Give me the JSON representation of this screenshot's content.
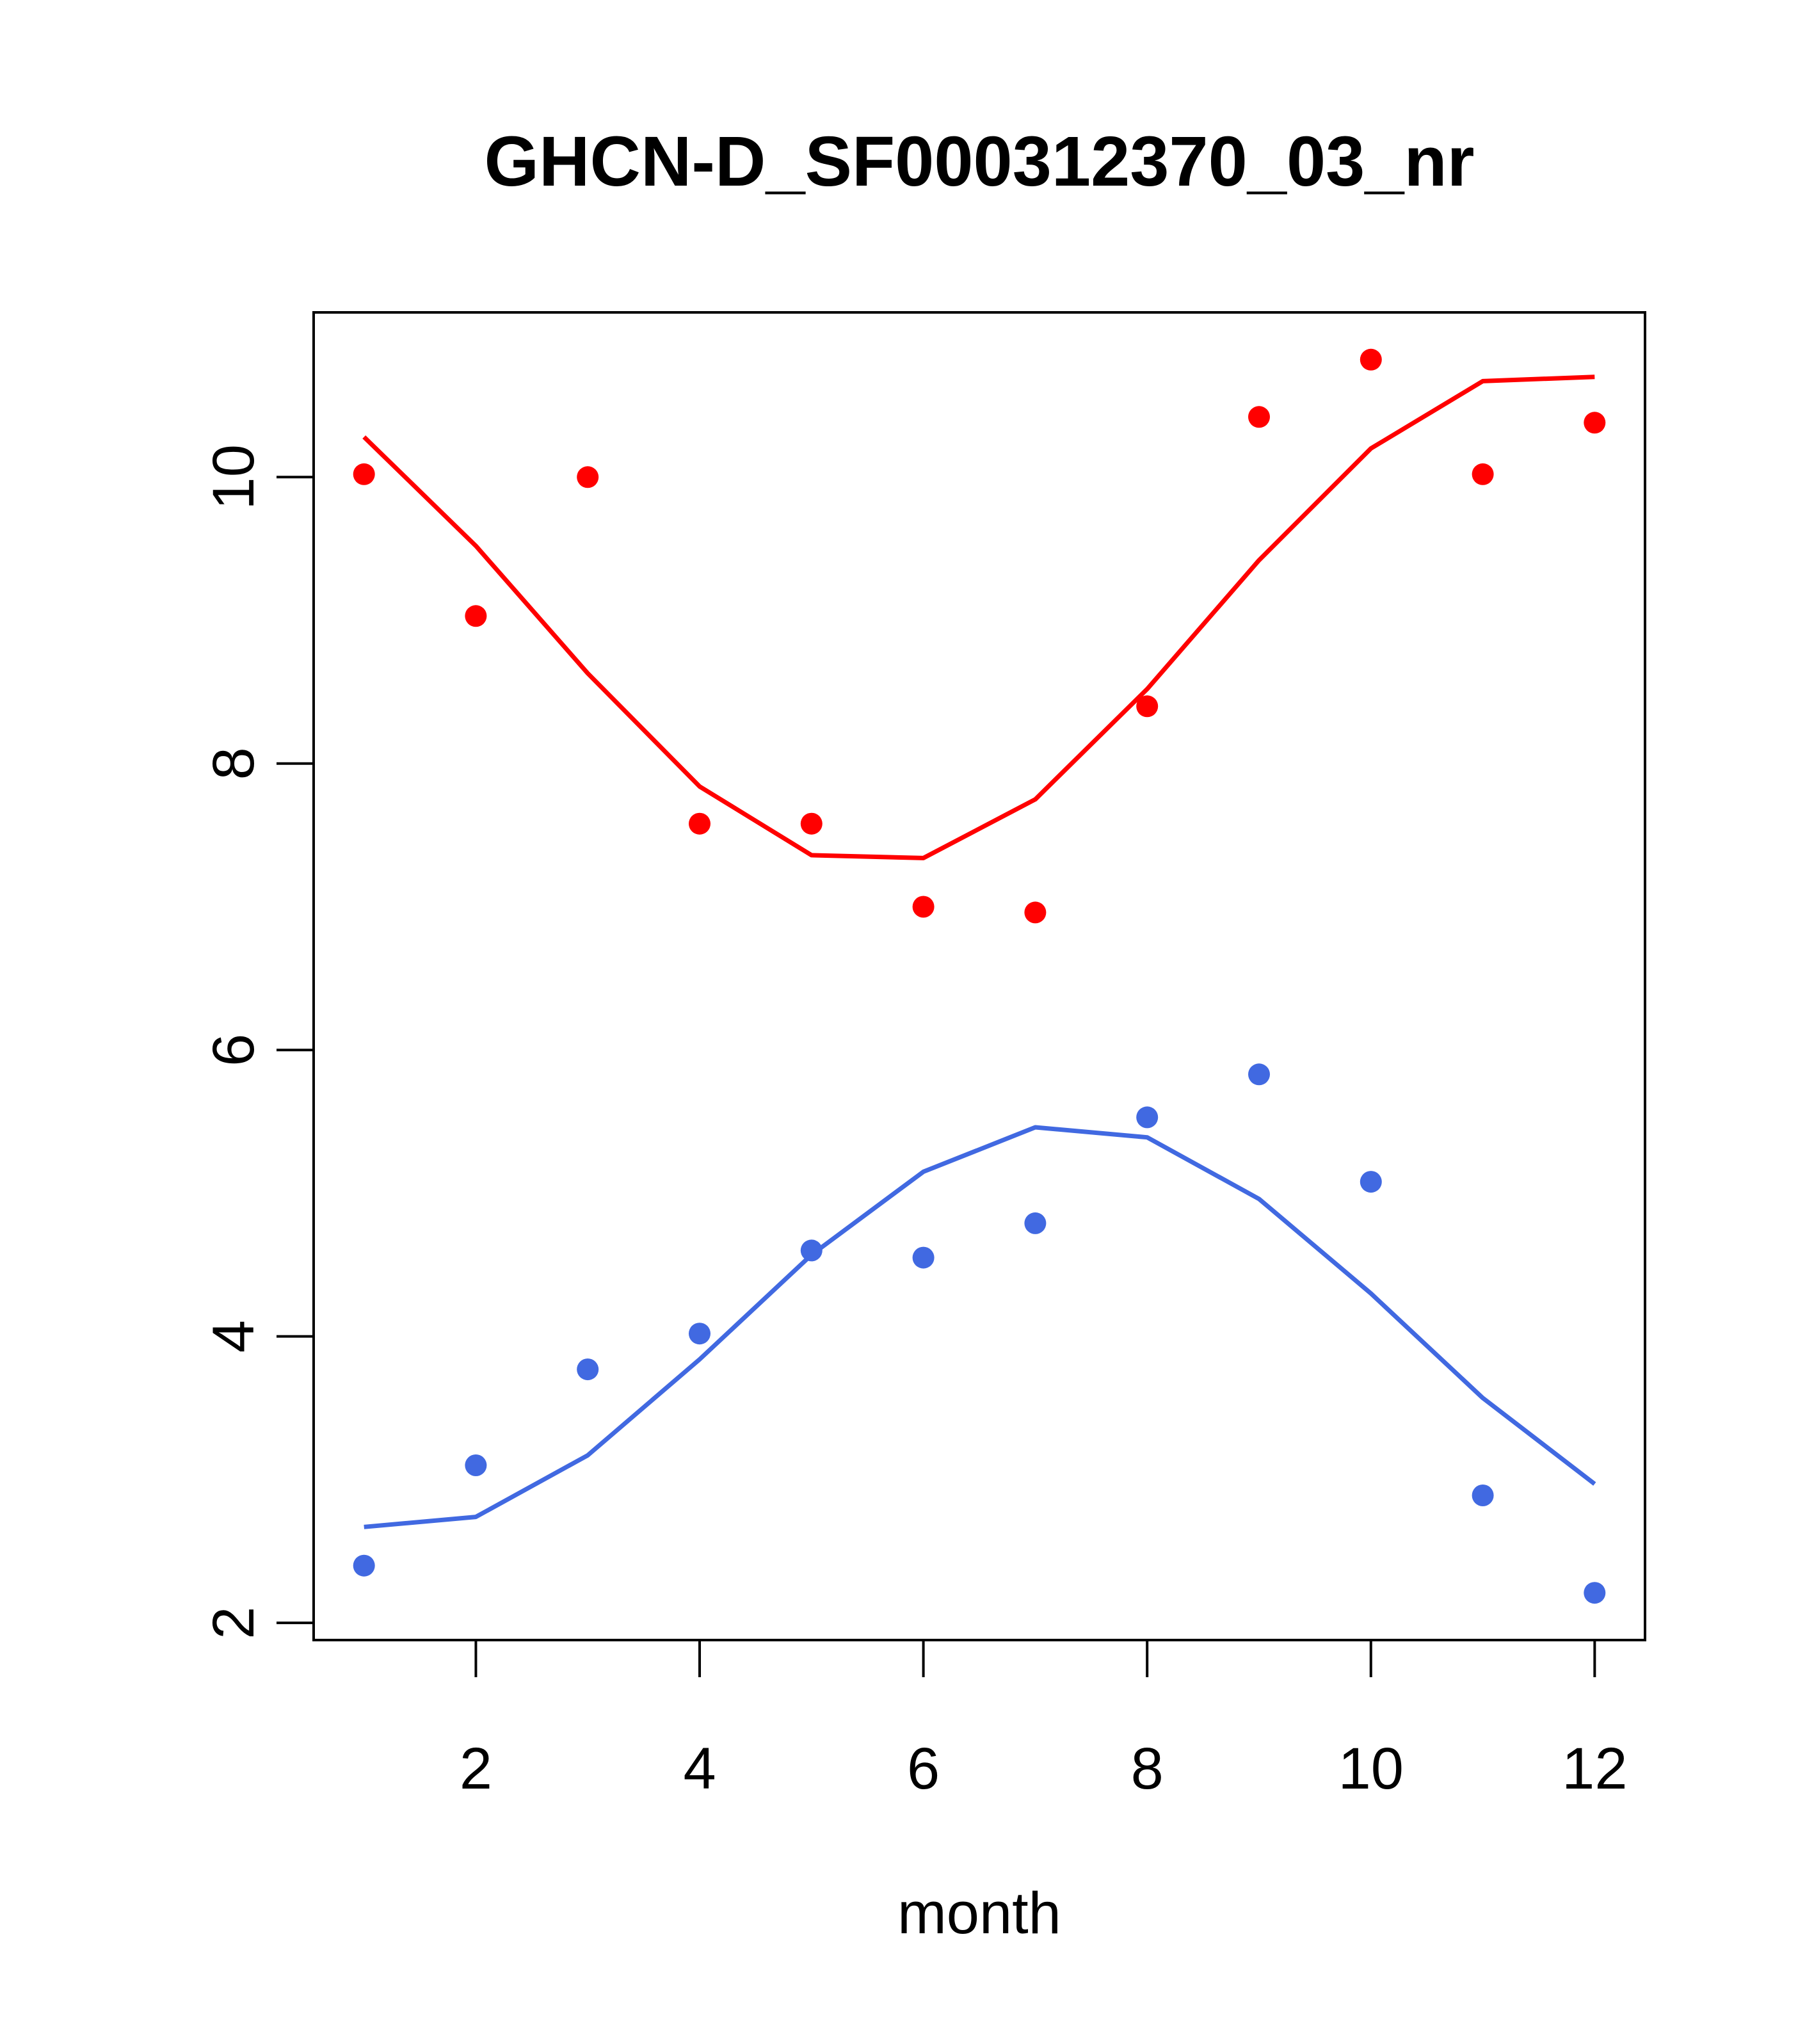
{
  "chart_data": {
    "type": "scatter",
    "title": "GHCN-D_SF000312370_03_nr",
    "xlabel": "month",
    "ylabel": "",
    "xlim": [
      0.55,
      12.45
    ],
    "ylim": [
      1.88,
      11.15
    ],
    "x_ticks": [
      2,
      4,
      6,
      8,
      10,
      12
    ],
    "y_ticks": [
      2,
      4,
      6,
      8,
      10
    ],
    "x": [
      1,
      2,
      3,
      4,
      5,
      6,
      7,
      8,
      9,
      10,
      11,
      12
    ],
    "grid": false,
    "legend": "none",
    "series": [
      {
        "color": "#ff0000",
        "points": [
          10.02,
          9.03,
          10.0,
          7.58,
          7.58,
          7.0,
          6.96,
          8.4,
          10.42,
          10.82,
          10.02,
          10.38
        ],
        "line": [
          10.28,
          9.52,
          8.63,
          7.84,
          7.36,
          7.34,
          7.75,
          8.52,
          9.42,
          10.2,
          10.67,
          10.7
        ]
      },
      {
        "color": "#4169e1",
        "points": [
          2.4,
          3.1,
          3.77,
          4.02,
          4.6,
          4.55,
          4.79,
          5.53,
          5.83,
          5.08,
          2.89,
          2.21
        ],
        "line": [
          2.67,
          2.74,
          3.17,
          3.84,
          4.57,
          5.15,
          5.46,
          5.39,
          4.96,
          4.3,
          3.57,
          2.97
        ]
      }
    ]
  }
}
